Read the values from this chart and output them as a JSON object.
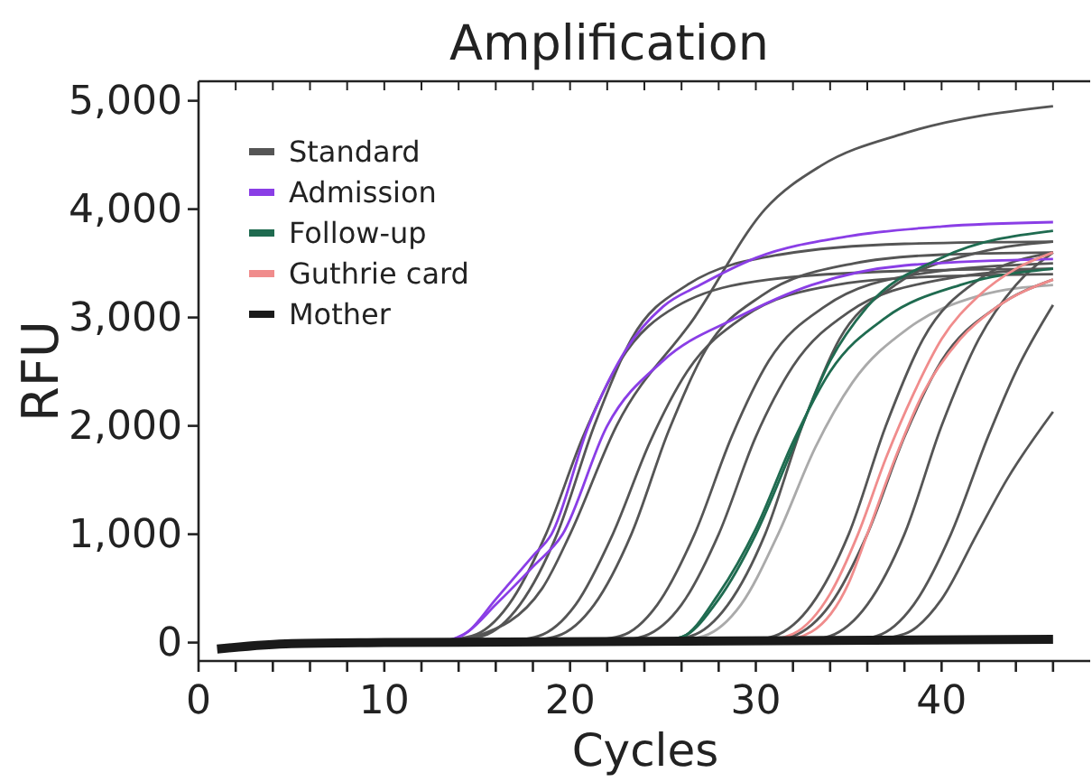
{
  "chart_data": {
    "type": "line",
    "title": "Amplification",
    "xlabel": "Cycles",
    "ylabel": "RFU",
    "xlim": [
      0,
      48
    ],
    "ylim": [
      -170,
      5180
    ],
    "xticks": [
      0,
      {
        "value": 2,
        "label": null
      },
      {
        "value": 4,
        "label": null
      },
      {
        "value": 6,
        "label": null
      },
      {
        "value": 8,
        "label": null
      },
      10,
      {
        "value": 12,
        "label": null
      },
      {
        "value": 14,
        "label": null
      },
      {
        "value": 16,
        "label": null
      },
      {
        "value": 18,
        "label": null
      },
      20,
      {
        "value": 22,
        "label": null
      },
      {
        "value": 24,
        "label": null
      },
      {
        "value": 26,
        "label": null
      },
      {
        "value": 28,
        "label": null
      },
      30,
      {
        "value": 32,
        "label": null
      },
      {
        "value": 34,
        "label": null
      },
      {
        "value": 36,
        "label": null
      },
      {
        "value": 38,
        "label": null
      },
      40,
      {
        "value": 42,
        "label": null
      },
      {
        "value": 44,
        "label": null
      },
      {
        "value": 46,
        "label": null
      }
    ],
    "yticks": [
      0,
      {
        "value": 1000,
        "label": "1,000"
      },
      {
        "value": 2000,
        "label": "2,000"
      },
      {
        "value": 3000,
        "label": "3,000"
      },
      {
        "value": 4000,
        "label": "4,000"
      },
      {
        "value": 5000,
        "label": "5,000"
      }
    ],
    "grid": false,
    "legend": "top left",
    "line_style": "solid",
    "marker": "none",
    "series": [
      {
        "name": "Standard",
        "color": "#555555",
        "x": [
          13,
          15,
          18.5,
          20,
          22.5,
          26.7,
          30.5,
          33.5,
          38,
          46
        ],
        "values": [
          0,
          60,
          500,
          1000,
          2000,
          3000,
          4000,
          4400,
          4700,
          4950
        ]
      },
      {
        "color": "#555555",
        "x": [
          12,
          14.7,
          16.7,
          18.7,
          20.7,
          22.7,
          25.7,
          30.7,
          38,
          46
        ],
        "values": [
          0,
          60,
          350,
          1000,
          1900,
          2600,
          3100,
          3350,
          3430,
          3450
        ]
      },
      {
        "color": "#555555",
        "x": [
          13,
          15.3,
          17.3,
          19.3,
          21.3,
          23.3,
          26.3,
          31.3,
          38,
          46
        ],
        "values": [
          0,
          60,
          350,
          1000,
          2000,
          2800,
          3300,
          3580,
          3680,
          3700
        ]
      },
      {
        "color": "#555555",
        "x": [
          16,
          18.3,
          20.3,
          22.3,
          24.3,
          26.3,
          29.3,
          34.3,
          40,
          46
        ],
        "values": [
          0,
          60,
          350,
          1000,
          1850,
          2500,
          3000,
          3300,
          3380,
          3400
        ]
      },
      {
        "color": "#555555",
        "x": [
          17,
          19.3,
          21.3,
          23.3,
          25.3,
          27.3,
          30.3,
          35.3,
          40,
          46
        ],
        "values": [
          0,
          60,
          350,
          1000,
          1950,
          2700,
          3200,
          3500,
          3580,
          3600
        ]
      },
      {
        "color": "#555555",
        "x": [
          20,
          22.7,
          24.7,
          26.7,
          28.7,
          30.7,
          33.7,
          38.7,
          46
        ],
        "values": [
          0,
          60,
          350,
          1000,
          1900,
          2600,
          3100,
          3400,
          3500
        ]
      },
      {
        "color": "#555555",
        "x": [
          22,
          24,
          26,
          28,
          30,
          32,
          35,
          40,
          46
        ],
        "values": [
          0,
          60,
          350,
          1000,
          1900,
          2550,
          3050,
          3350,
          3450
        ]
      },
      {
        "color": "#555555",
        "x": [
          24,
          26.5,
          28.5,
          30.5,
          32.5,
          34.5,
          37.5,
          42,
          46
        ],
        "values": [
          0,
          60,
          350,
          1000,
          2000,
          2800,
          3300,
          3600,
          3700
        ]
      },
      {
        "color": "#aaaaaa",
        "x": [
          25,
          27.2,
          29.2,
          31.2,
          33.2,
          35.2,
          38.2,
          42,
          46
        ],
        "values": [
          0,
          60,
          350,
          1000,
          1800,
          2400,
          2900,
          3200,
          3300
        ]
      },
      {
        "color": "#555555",
        "x": [
          29,
          31,
          33,
          35,
          37,
          39,
          42,
          46
        ],
        "values": [
          0,
          60,
          350,
          1000,
          2000,
          2800,
          3350,
          3600
        ]
      },
      {
        "color": "#555555",
        "x": [
          30,
          32,
          34,
          36,
          38,
          40,
          43,
          46
        ],
        "values": [
          0,
          60,
          350,
          1000,
          1900,
          2600,
          3100,
          3350
        ]
      },
      {
        "color": "#555555",
        "x": [
          32,
          34,
          36,
          38,
          40,
          42,
          44,
          46
        ],
        "values": [
          0,
          60,
          350,
          1000,
          2000,
          2800,
          3300,
          3600
        ]
      },
      {
        "color": "#555555",
        "x": [
          34,
          36.5,
          38.5,
          40.5,
          42.5,
          44,
          46
        ],
        "values": [
          0,
          60,
          350,
          1000,
          1900,
          2500,
          3115
        ]
      },
      {
        "color": "#555555",
        "x": [
          35,
          38,
          40,
          41.9,
          43.5,
          46
        ],
        "values": [
          0,
          80,
          400,
          1000,
          1500,
          2130
        ]
      },
      {
        "name": "Admission",
        "color": "#8a3ee6",
        "x": [
          13,
          14.5,
          16,
          18,
          19,
          21,
          23,
          25,
          27,
          30,
          35,
          40,
          46
        ],
        "values": [
          0,
          100,
          400,
          800,
          1000,
          2000,
          2700,
          3100,
          3300,
          3550,
          3750,
          3840,
          3880
        ]
      },
      {
        "color": "#8a3ee6",
        "x": [
          13,
          14.5,
          16,
          18,
          19.6,
          22,
          25,
          29,
          33,
          38,
          46
        ],
        "values": [
          0,
          100,
          350,
          700,
          1000,
          2000,
          2600,
          3000,
          3300,
          3480,
          3540
        ]
      },
      {
        "name": "Follow-up",
        "color": "#1f6b50",
        "x": [
          24,
          26,
          28,
          30,
          32,
          34,
          36,
          40,
          46
        ],
        "values": [
          0,
          50,
          400,
          1000,
          1800,
          2600,
          3100,
          3550,
          3800
        ]
      },
      {
        "color": "#1f6b50",
        "x": [
          24,
          26,
          28,
          30,
          32,
          34,
          37,
          41,
          46
        ],
        "values": [
          0,
          50,
          450,
          1050,
          1850,
          2500,
          3000,
          3300,
          3450
        ]
      },
      {
        "name": "Guthrie card",
        "color": "#f08c8c",
        "x": [
          30,
          32,
          34,
          35.5,
          37,
          38.5,
          40,
          42,
          44,
          46
        ],
        "values": [
          0,
          80,
          450,
          1000,
          1700,
          2300,
          2800,
          3200,
          3450,
          3600
        ]
      },
      {
        "color": "#f08c8c",
        "x": [
          31,
          33,
          35,
          36,
          37.5,
          39,
          41,
          43,
          46
        ],
        "values": [
          0,
          100,
          550,
          1000,
          1700,
          2300,
          2800,
          3100,
          3350
        ]
      },
      {
        "name": "Mother",
        "color": "#1a1a1a",
        "x": [
          1,
          5,
          10,
          46
        ],
        "values": [
          -60,
          -10,
          0,
          30
        ]
      }
    ]
  }
}
